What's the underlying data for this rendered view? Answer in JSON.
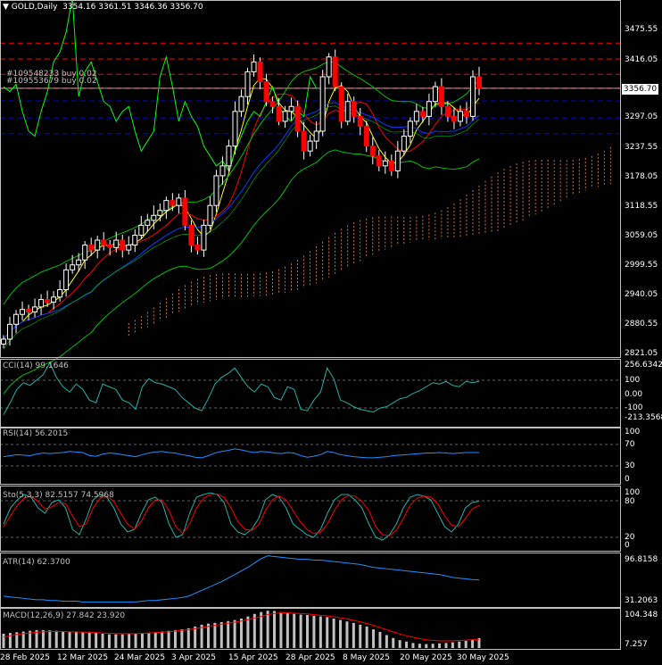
{
  "header": {
    "symbol": "GOLD,Daily",
    "ohlc": "3354.16 3361.51 3346.36 3356.70",
    "triangle": "▼"
  },
  "orders": [
    "#109548233 buy 0.02",
    "#109553679 buy 0.02"
  ],
  "price_axis": {
    "ticks": [
      "3475.55",
      "3416.05",
      "3356.70",
      "3297.05",
      "3237.55",
      "3178.05",
      "3118.55",
      "3059.05",
      "2999.55",
      "2940.05",
      "2880.55",
      "2821.05"
    ],
    "current_price": "3356.70"
  },
  "panels": {
    "cci": {
      "label": "CCI(14) 99.1646",
      "ticks": [
        "256.6342",
        "100",
        "0.00",
        "-100",
        "-213.3568"
      ]
    },
    "rsi": {
      "label": "RSI(14) 56.2015",
      "ticks": [
        "100",
        "70",
        "30",
        "0"
      ]
    },
    "stoch": {
      "label": "Sto(5,3,3) 82.5157 74.5968",
      "ticks": [
        "100",
        "80",
        "20",
        "0"
      ]
    },
    "atr": {
      "label": "ATR(14) 62.3700",
      "ticks": [
        "96.8158",
        "31.2063"
      ]
    },
    "macd": {
      "label": "MACD(12,26,9) 27.842 23.920",
      "ticks": [
        "104.348",
        "7.257"
      ]
    }
  },
  "date_axis": [
    "28 Feb 2025",
    "12 Mar 2025",
    "24 Mar 2025",
    "3 Apr 2025",
    "15 Apr 2025",
    "28 Apr 2025",
    "8 May 2025",
    "20 May 2025",
    "30 May 2025"
  ],
  "colors": {
    "background": "#000000",
    "bull_candle": "#ffffff",
    "bear_candle": "#ff0000",
    "bollinger": "#00c000",
    "ma_fast": "#ffff00",
    "ma_mid": "#ff0000",
    "ma_slow": "#0040ff",
    "cloud": "#ff9040",
    "chikou": "#00ff00",
    "order_line": "#ff0000",
    "level_line": "#0000ff",
    "cci": "#20b2aa",
    "rsi": "#1e90ff",
    "stoch_main": "#20b2aa",
    "stoch_signal": "#ff0000",
    "atr": "#1e90ff",
    "macd_hist": "#c0c0c0",
    "macd_signal": "#ff0000",
    "grid": "#808080"
  },
  "chart_data": {
    "type": "candlestick",
    "symbol": "GOLD",
    "timeframe": "Daily",
    "close_series": [
      2850,
      2880,
      2900,
      2910,
      2905,
      2915,
      2930,
      2925,
      2935,
      2950,
      2990,
      3000,
      3010,
      3040,
      3030,
      3050,
      3040,
      3035,
      3050,
      3030,
      3040,
      3060,
      3080,
      3090,
      3100,
      3110,
      3130,
      3120,
      3135,
      3080,
      3040,
      3030,
      3080,
      3120,
      3180,
      3200,
      3240,
      3310,
      3340,
      3390,
      3410,
      3370,
      3330,
      3320,
      3290,
      3310,
      3320,
      3270,
      3230,
      3250,
      3270,
      3380,
      3420,
      3360,
      3290,
      3330,
      3300,
      3280,
      3240,
      3220,
      3200,
      3210,
      3190,
      3230,
      3260,
      3290,
      3310,
      3300,
      3330,
      3360,
      3320,
      3300,
      3290,
      3310,
      3300,
      3380,
      3356.7
    ],
    "cci_series": [
      -150,
      -60,
      40,
      90,
      70,
      110,
      150,
      240,
      130,
      60,
      20,
      80,
      40,
      -40,
      -60,
      80,
      60,
      40,
      -40,
      -60,
      -110,
      60,
      120,
      90,
      80,
      60,
      40,
      -20,
      -60,
      -100,
      -120,
      -30,
      80,
      130,
      160,
      200,
      130,
      60,
      20,
      80,
      60,
      -20,
      -40,
      60,
      40,
      -110,
      -120,
      -40,
      20,
      200,
      120,
      -40,
      -60,
      -90,
      -110,
      -120,
      -130,
      -100,
      -90,
      -60,
      -30,
      -20,
      10,
      30,
      60,
      90,
      80,
      100,
      70,
      60,
      100,
      90,
      100
    ],
    "rsi_series": [
      48,
      50,
      52,
      51,
      50,
      53,
      55,
      54,
      55,
      56,
      58,
      57,
      56,
      50,
      49,
      53,
      55,
      54,
      52,
      50,
      48,
      52,
      55,
      57,
      58,
      56,
      55,
      52,
      50,
      47,
      46,
      50,
      55,
      58,
      60,
      63,
      61,
      58,
      56,
      58,
      57,
      55,
      54,
      56,
      55,
      50,
      47,
      49,
      52,
      58,
      56,
      52,
      50,
      48,
      47,
      46,
      46,
      47,
      48,
      50,
      51,
      52,
      53,
      54,
      55,
      55,
      56,
      55,
      54,
      55,
      56,
      56,
      56
    ],
    "stoch_main": [
      40,
      70,
      85,
      95,
      90,
      70,
      60,
      80,
      85,
      70,
      30,
      20,
      50,
      85,
      95,
      90,
      70,
      40,
      25,
      30,
      60,
      85,
      90,
      80,
      40,
      15,
      20,
      60,
      90,
      95,
      98,
      95,
      80,
      40,
      25,
      20,
      30,
      50,
      85,
      95,
      90,
      70,
      40,
      30,
      20,
      15,
      30,
      60,
      85,
      95,
      95,
      85,
      70,
      40,
      15,
      10,
      20,
      40,
      70,
      90,
      95,
      92,
      85,
      60,
      35,
      25,
      40,
      70,
      80,
      82.5
    ],
    "stoch_signal": [
      35,
      55,
      75,
      88,
      92,
      82,
      68,
      72,
      80,
      78,
      55,
      35,
      40,
      70,
      88,
      92,
      82,
      60,
      40,
      30,
      45,
      70,
      85,
      85,
      65,
      35,
      22,
      40,
      70,
      88,
      95,
      96,
      90,
      70,
      45,
      30,
      28,
      38,
      65,
      85,
      92,
      85,
      65,
      45,
      30,
      22,
      25,
      40,
      65,
      85,
      93,
      92,
      82,
      65,
      35,
      20,
      18,
      28,
      50,
      75,
      88,
      92,
      90,
      78,
      55,
      38,
      35,
      50,
      68,
      74.6
    ],
    "atr_series": [
      40,
      39,
      38,
      37,
      36,
      35,
      35,
      34,
      34,
      33,
      33,
      33,
      32,
      32,
      32,
      32,
      32,
      32,
      32,
      32,
      32,
      33,
      34,
      34,
      35,
      36,
      37,
      38,
      40,
      44,
      48,
      52,
      56,
      60,
      65,
      70,
      75,
      80,
      86,
      92,
      96,
      95,
      94,
      93,
      92,
      91,
      91,
      90,
      90,
      89,
      88,
      87,
      86,
      85,
      84,
      82,
      80,
      79,
      78,
      77,
      76,
      75,
      74,
      73,
      72,
      71,
      70,
      68,
      66,
      65,
      64,
      63,
      62.4
    ],
    "macd_hist": [
      40,
      42,
      44,
      46,
      48,
      50,
      50,
      49,
      48,
      47,
      46,
      45,
      44,
      43,
      42,
      40,
      38,
      38,
      38,
      39,
      40,
      41,
      42,
      44,
      46,
      48,
      50,
      52,
      55,
      60,
      65,
      68,
      70,
      72,
      75,
      78,
      82,
      88,
      95,
      100,
      104,
      103,
      100,
      98,
      95,
      93,
      92,
      90,
      88,
      86,
      82,
      78,
      74,
      70,
      65,
      60,
      52,
      45,
      36,
      28,
      22,
      18,
      14,
      12,
      11,
      12,
      13,
      14,
      16,
      18,
      20,
      24,
      27.8
    ],
    "macd_signal": [
      30,
      34,
      38,
      40,
      42,
      44,
      45,
      46,
      46,
      46,
      45,
      45,
      44,
      44,
      43,
      42,
      41,
      40,
      40,
      40,
      40,
      41,
      42,
      43,
      44,
      45,
      47,
      49,
      51,
      54,
      57,
      60,
      63,
      66,
      69,
      72,
      75,
      79,
      84,
      88,
      93,
      96,
      98,
      98,
      97,
      96,
      95,
      93,
      91,
      89,
      87,
      84,
      81,
      77,
      73,
      68,
      63,
      57,
      51,
      45,
      39,
      34,
      30,
      26,
      23,
      21,
      20,
      20,
      20,
      21,
      22,
      23,
      23.9
    ]
  }
}
